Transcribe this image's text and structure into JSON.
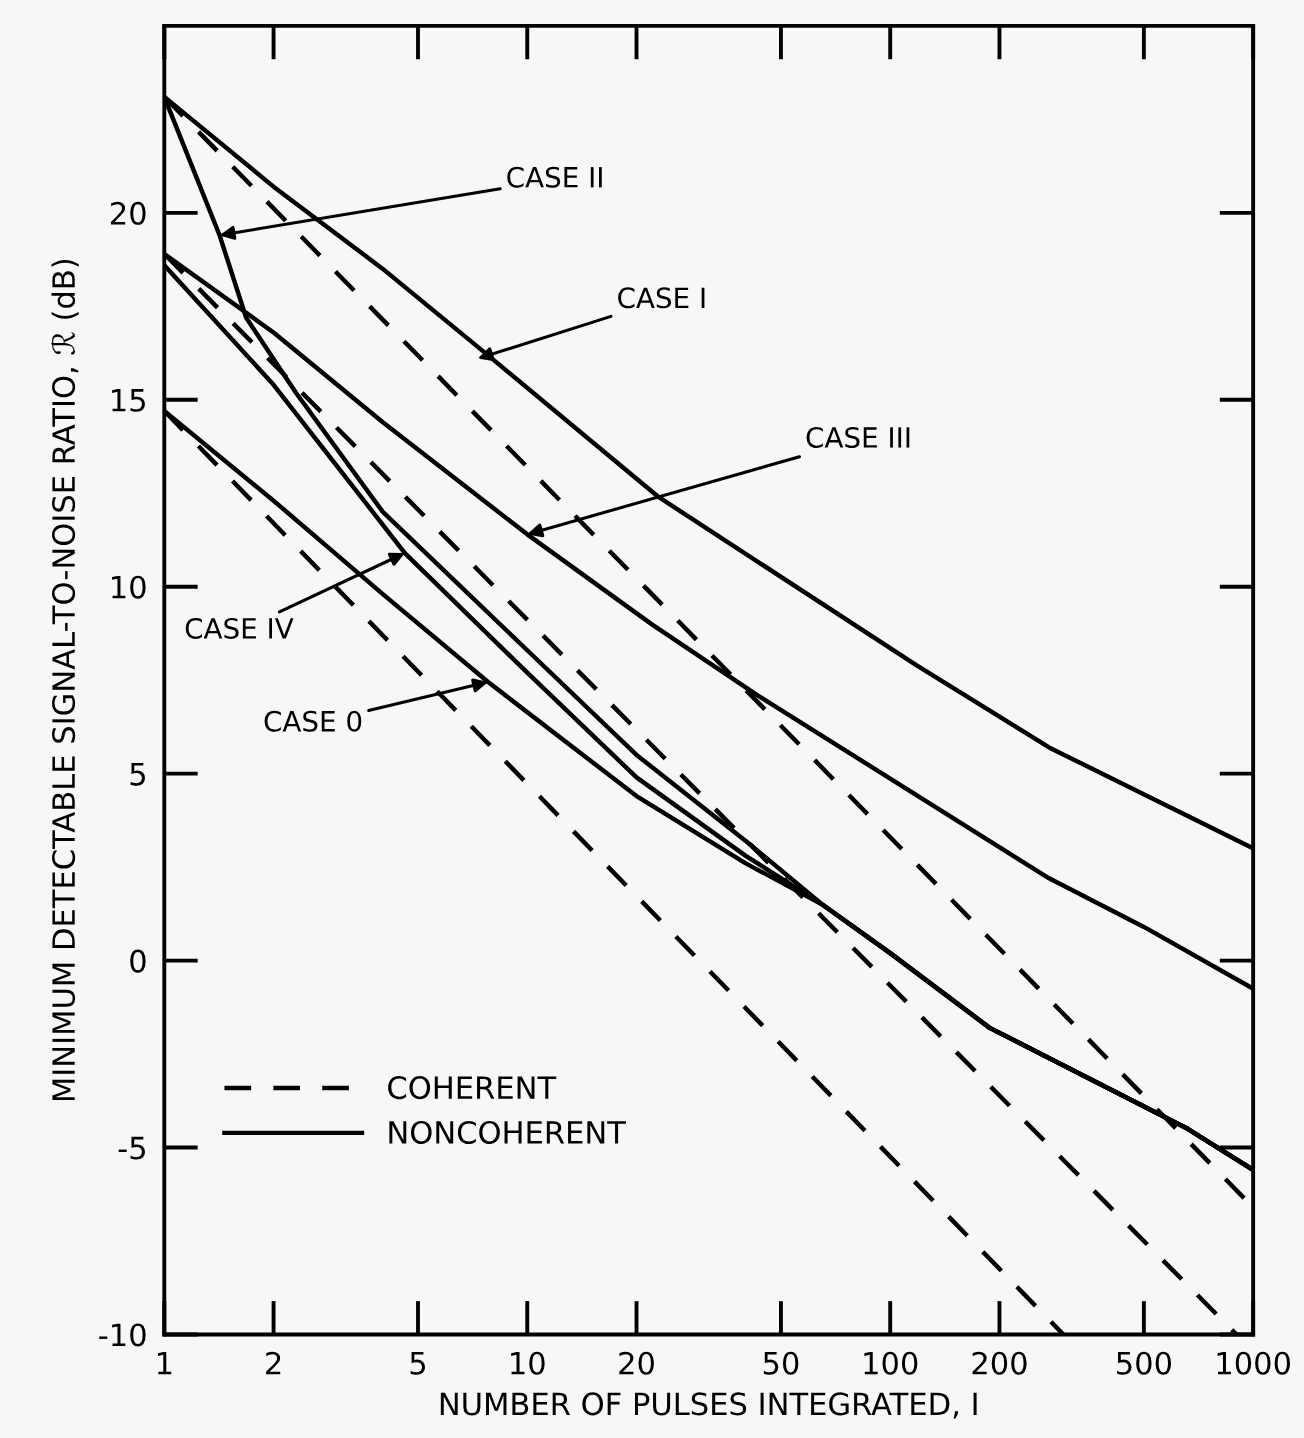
{
  "chart_data": {
    "type": "line",
    "xlabel": "NUMBER OF PULSES INTEGRATED, I",
    "ylabel": "MINIMUM DETECTABLE SIGNAL-TO-NOISE RATIO, ℛ (dB)",
    "log": "x",
    "xlim": [
      1,
      1000
    ],
    "ylim": [
      -10,
      25
    ],
    "xticks": [
      1,
      2,
      5,
      10,
      20,
      50,
      100,
      200,
      500,
      1000
    ],
    "yticks": [
      -10,
      -5,
      0,
      5,
      10,
      15,
      20
    ],
    "grid": false,
    "legend": "bottom left",
    "marker": "none",
    "series": [
      {
        "name": "COHERENT",
        "color": "#000000",
        "line_style": "dashed",
        "x": [
          1,
          1000
        ],
        "values": [
          23.1,
          -6.6
        ]
      },
      {
        "color": "#000000",
        "line_style": "dashed",
        "x": [
          1,
          900
        ],
        "values": [
          18.9,
          -10
        ]
      },
      {
        "color": "#000000",
        "line_style": "dashed",
        "x": [
          1,
          300
        ],
        "values": [
          14.7,
          -10
        ]
      },
      {
        "name": "NONCOHERENT",
        "color": "#000000",
        "line_style": "solid",
        "x": [
          1,
          2,
          4,
          8,
          23,
          118,
          274,
          1000
        ],
        "values": [
          23.1,
          20.7,
          18.5,
          16.1,
          12.4,
          7.9,
          5.7,
          3.0
        ]
      },
      {
        "color": "#000000",
        "line_style": "solid",
        "x": [
          1,
          2,
          4,
          10,
          22,
          43,
          274,
          500,
          1000
        ],
        "values": [
          18.9,
          16.8,
          14.4,
          11.4,
          9.0,
          7.1,
          2.2,
          0.9,
          -0.75
        ]
      },
      {
        "color": "#000000",
        "line_style": "solid",
        "x": [
          1,
          1.42,
          1.68,
          2.3,
          4,
          10,
          20,
          40,
          65,
          100,
          188,
          660,
          1000
        ],
        "values": [
          23.1,
          19.4,
          17.2,
          15.2,
          12.0,
          8.3,
          5.5,
          3.2,
          1.5,
          0.2,
          -1.8,
          -4.5,
          -5.6
        ]
      },
      {
        "color": "#000000",
        "line_style": "solid",
        "x": [
          1,
          2,
          4.6,
          10,
          20,
          40,
          65,
          100,
          188,
          660,
          1000
        ],
        "values": [
          18.6,
          15.4,
          10.9,
          7.7,
          4.9,
          2.8,
          1.5,
          0.2,
          -1.8,
          -4.5,
          -5.6
        ]
      },
      {
        "color": "#000000",
        "line_style": "solid",
        "x": [
          1,
          2,
          4,
          7.8,
          20,
          40,
          65,
          100,
          188,
          660,
          1000
        ],
        "values": [
          14.7,
          12.3,
          9.8,
          7.45,
          4.4,
          2.6,
          1.5,
          0.2,
          -1.8,
          -4.5,
          -5.6
        ]
      }
    ],
    "annotations": [
      {
        "text": "CASE II",
        "x": 1.42,
        "y": 19.4
      },
      {
        "text": "CASE I",
        "x": 7.3,
        "y": 16.1
      },
      {
        "text": "CASE III",
        "x": 10,
        "y": 11.4
      },
      {
        "text": "CASE IV",
        "x": 4.6,
        "y": 10.9
      },
      {
        "text": "CASE 0",
        "x": 7.8,
        "y": 7.45
      }
    ]
  }
}
